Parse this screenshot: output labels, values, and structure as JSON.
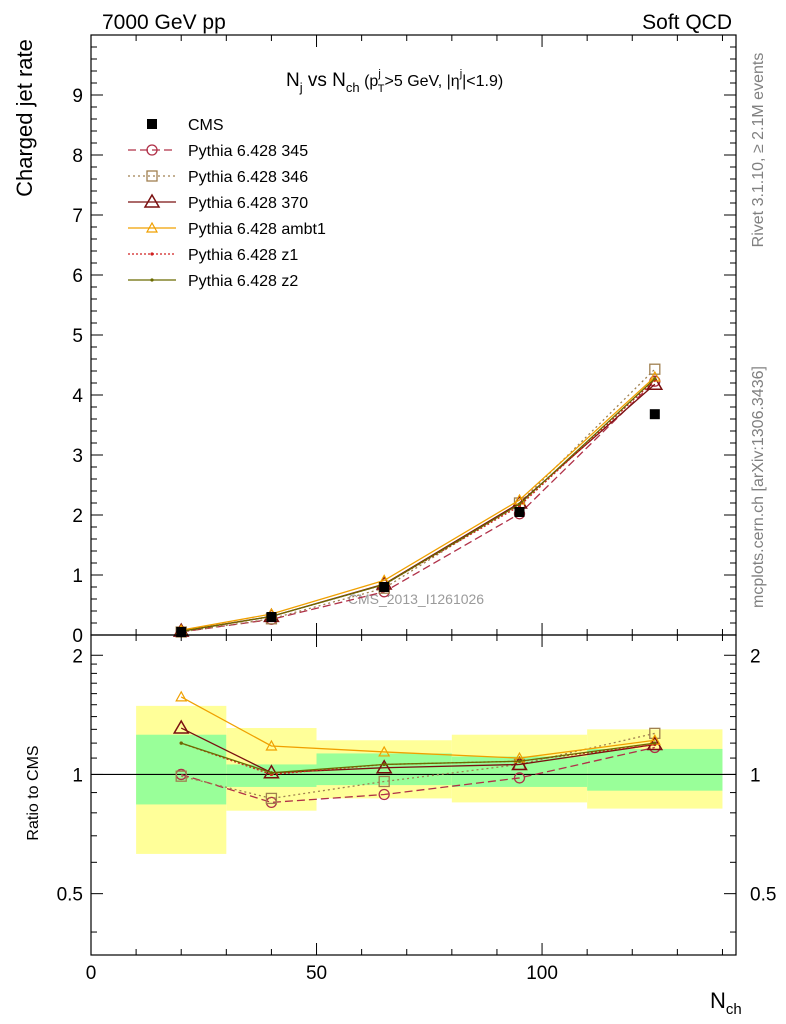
{
  "header": {
    "left": "7000 GeV pp",
    "right": "Soft QCD"
  },
  "side_labels": {
    "top": "Rivet 3.1.10, ≥ 2.1M events",
    "bottom": "mcplots.cern.ch [arXiv:1306.3436]"
  },
  "watermark": "CMS_2013_I1261026",
  "main_title": {
    "text_a": "N",
    "sub_a": "j",
    "text_b": " vs N",
    "sub_b": "ch",
    "text_c": " (p",
    "sup_c": "j",
    "sub_c": "T",
    "text_d": ">5 GeV, |η",
    "sup_d": "j",
    "text_e": "|<1.9)"
  },
  "chart_data": [
    {
      "type": "line",
      "panel": "main",
      "ylabel": "Charged jet rate",
      "xlim": [
        0,
        143
      ],
      "ylim": [
        0,
        10
      ],
      "yticks": [
        0,
        1,
        2,
        3,
        4,
        5,
        6,
        7,
        8,
        9
      ],
      "grid": false,
      "legend_position": "top-left",
      "x": [
        20,
        40,
        65,
        95,
        125
      ],
      "data": {
        "name": "CMS",
        "values": [
          0.05,
          0.3,
          0.8,
          2.05,
          3.68
        ]
      },
      "series": [
        {
          "name": "Pythia 6.428 345",
          "color": "#b03048",
          "marker": "circle",
          "dash": "8,4",
          "values": [
            0.05,
            0.26,
            0.72,
            2.02,
            4.23
          ]
        },
        {
          "name": "Pythia 6.428 346",
          "color": "#a08050",
          "marker": "square",
          "dash": "2,3",
          "values": [
            0.05,
            0.27,
            0.78,
            2.2,
            4.43
          ]
        },
        {
          "name": "Pythia 6.428 370",
          "color": "#7a1010",
          "marker": "triangle",
          "dash": "",
          "values": [
            0.065,
            0.31,
            0.85,
            2.2,
            4.18
          ]
        },
        {
          "name": "Pythia 6.428 ambt1",
          "color": "#f0a000",
          "marker": "triangle-open-small",
          "dash": "",
          "values": [
            0.08,
            0.35,
            0.91,
            2.25,
            4.3
          ]
        },
        {
          "name": "Pythia 6.428 z1",
          "color": "#d02020",
          "marker": "dot",
          "dash": "2,2",
          "values": [
            0.06,
            0.31,
            0.84,
            2.15,
            4.25
          ]
        },
        {
          "name": "Pythia 6.428 z2",
          "color": "#6b6b00",
          "marker": "dot",
          "dash": "",
          "values": [
            0.06,
            0.31,
            0.84,
            2.18,
            4.27
          ]
        }
      ]
    },
    {
      "type": "line",
      "panel": "ratio",
      "ylabel": "Ratio to CMS",
      "xlabel": "N",
      "xlabel_sub": "ch",
      "xlim": [
        0,
        143
      ],
      "ylim": [
        0.35,
        2.25
      ],
      "yticks": [
        0.5,
        1,
        2
      ],
      "xticks": [
        0,
        50,
        100
      ],
      "reference_line": 1,
      "bands": [
        {
          "x_lo": 10,
          "x_hi": 30,
          "inner": [
            0.84,
            1.26
          ],
          "outer": [
            0.63,
            1.49
          ]
        },
        {
          "x_lo": 30,
          "x_hi": 50,
          "inner": [
            0.93,
            1.06
          ],
          "outer": [
            0.81,
            1.31
          ]
        },
        {
          "x_lo": 50,
          "x_hi": 80,
          "inner": [
            0.94,
            1.13
          ],
          "outer": [
            0.87,
            1.22
          ]
        },
        {
          "x_lo": 80,
          "x_hi": 110,
          "inner": [
            0.93,
            1.11
          ],
          "outer": [
            0.85,
            1.26
          ]
        },
        {
          "x_lo": 110,
          "x_hi": 140,
          "inner": [
            0.91,
            1.16
          ],
          "outer": [
            0.82,
            1.3
          ]
        }
      ],
      "x": [
        20,
        40,
        65,
        95,
        125
      ],
      "series": [
        {
          "name": "Pythia 6.428 345",
          "values": [
            1.0,
            0.85,
            0.89,
            0.98,
            1.17
          ]
        },
        {
          "name": "Pythia 6.428 346",
          "values": [
            0.99,
            0.87,
            0.96,
            1.06,
            1.27
          ]
        },
        {
          "name": "Pythia 6.428 370",
          "values": [
            1.31,
            1.01,
            1.04,
            1.06,
            1.19
          ]
        },
        {
          "name": "Pythia 6.428 ambt1",
          "values": [
            1.57,
            1.18,
            1.14,
            1.1,
            1.22
          ]
        },
        {
          "name": "Pythia 6.428 z1",
          "values": [
            1.2,
            1.0,
            1.06,
            1.08,
            1.19
          ]
        },
        {
          "name": "Pythia 6.428 z2",
          "values": [
            1.2,
            1.01,
            1.06,
            1.08,
            1.2
          ]
        }
      ]
    }
  ]
}
